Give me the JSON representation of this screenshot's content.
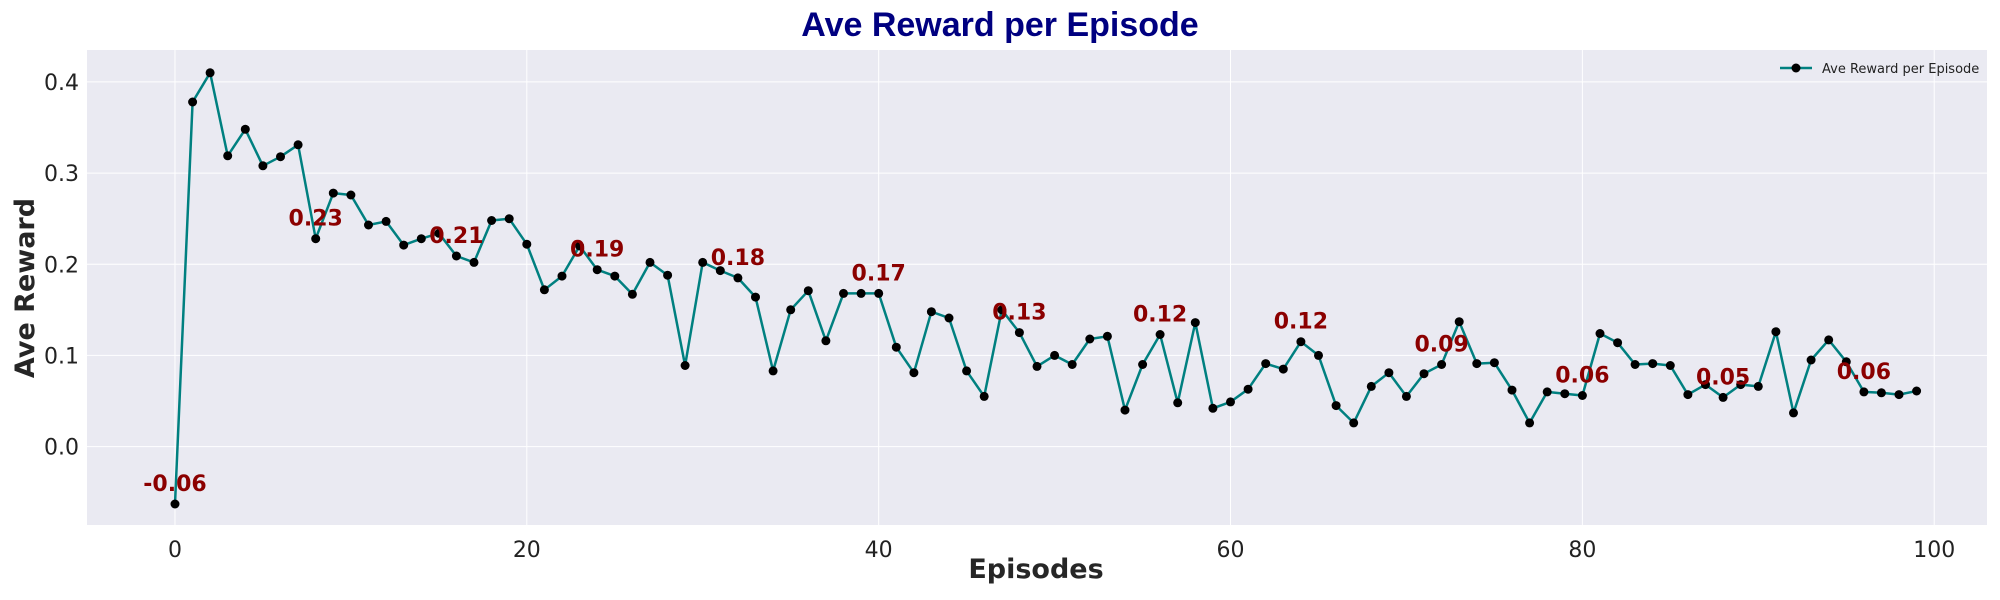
{
  "chart_data": {
    "type": "line",
    "title": "Ave Reward per Episode",
    "xlabel": "Episodes",
    "ylabel": "Ave Reward",
    "xlim": [
      -5,
      103
    ],
    "ylim": [
      -0.086,
      0.435
    ],
    "xticks": [
      0,
      20,
      40,
      60,
      80,
      100
    ],
    "xtick_labels": [
      "0",
      "20",
      "40",
      "60",
      "80",
      "100"
    ],
    "yticks": [
      0.0,
      0.1,
      0.2,
      0.3,
      0.4
    ],
    "ytick_labels": [
      "0.0",
      "0.1",
      "0.2",
      "0.3",
      "0.4"
    ],
    "grid": true,
    "legend_position": "top-right",
    "colors": {
      "line": "#008080",
      "marker": "#000000",
      "annotation": "#8b0000",
      "plot_bg": "#eaeaf2",
      "grid": "#ffffff",
      "title": "#000080"
    },
    "series": [
      {
        "name": "Ave Reward per Episode",
        "x": [
          0,
          1,
          2,
          3,
          4,
          5,
          6,
          7,
          8,
          9,
          10,
          11,
          12,
          13,
          14,
          15,
          16,
          17,
          18,
          19,
          20,
          21,
          22,
          23,
          24,
          25,
          26,
          27,
          28,
          29,
          30,
          31,
          32,
          33,
          34,
          35,
          36,
          37,
          38,
          39,
          40,
          41,
          42,
          43,
          44,
          45,
          46,
          47,
          48,
          49,
          50,
          51,
          52,
          53,
          54,
          55,
          56,
          57,
          58,
          59,
          60,
          61,
          62,
          63,
          64,
          65,
          66,
          67,
          68,
          69,
          70,
          71,
          72,
          73,
          74,
          75,
          76,
          77,
          78,
          79,
          80,
          81,
          82,
          83,
          84,
          85,
          86,
          87,
          88,
          89,
          90,
          91,
          92,
          93,
          94,
          95,
          96,
          97,
          98,
          99
        ],
        "values": [
          -0.063,
          0.378,
          0.41,
          0.319,
          0.348,
          0.308,
          0.318,
          0.331,
          0.228,
          0.278,
          0.276,
          0.243,
          0.247,
          0.221,
          0.228,
          0.234,
          0.209,
          0.202,
          0.248,
          0.25,
          0.222,
          0.172,
          0.187,
          0.22,
          0.194,
          0.187,
          0.167,
          0.202,
          0.188,
          0.089,
          0.202,
          0.193,
          0.185,
          0.164,
          0.083,
          0.15,
          0.171,
          0.116,
          0.168,
          0.168,
          0.168,
          0.109,
          0.081,
          0.148,
          0.141,
          0.083,
          0.055,
          0.15,
          0.125,
          0.088,
          0.1,
          0.09,
          0.118,
          0.121,
          0.04,
          0.09,
          0.123,
          0.048,
          0.136,
          0.042,
          0.049,
          0.063,
          0.091,
          0.085,
          0.115,
          0.1,
          0.045,
          0.026,
          0.066,
          0.081,
          0.055,
          0.08,
          0.09,
          0.137,
          0.091,
          0.092,
          0.062,
          0.026,
          0.06,
          0.058,
          0.056,
          0.124,
          0.114,
          0.09,
          0.091,
          0.089,
          0.057,
          0.068,
          0.054,
          0.068,
          0.066,
          0.126,
          0.037,
          0.095,
          0.117,
          0.093,
          0.06,
          0.059,
          0.057,
          0.061
        ]
      }
    ],
    "annotations": [
      {
        "x": 0,
        "y": -0.063,
        "text": "-0.06"
      },
      {
        "x": 8,
        "y": 0.228,
        "text": "0.23"
      },
      {
        "x": 16,
        "y": 0.209,
        "text": "0.21"
      },
      {
        "x": 24,
        "y": 0.194,
        "text": "0.19"
      },
      {
        "x": 32,
        "y": 0.185,
        "text": "0.18"
      },
      {
        "x": 40,
        "y": 0.168,
        "text": "0.17"
      },
      {
        "x": 48,
        "y": 0.125,
        "text": "0.13"
      },
      {
        "x": 56,
        "y": 0.123,
        "text": "0.12"
      },
      {
        "x": 64,
        "y": 0.115,
        "text": "0.12"
      },
      {
        "x": 72,
        "y": 0.09,
        "text": "0.09"
      },
      {
        "x": 80,
        "y": 0.056,
        "text": "0.06"
      },
      {
        "x": 88,
        "y": 0.054,
        "text": "0.05"
      },
      {
        "x": 96,
        "y": 0.06,
        "text": "0.06"
      }
    ]
  }
}
